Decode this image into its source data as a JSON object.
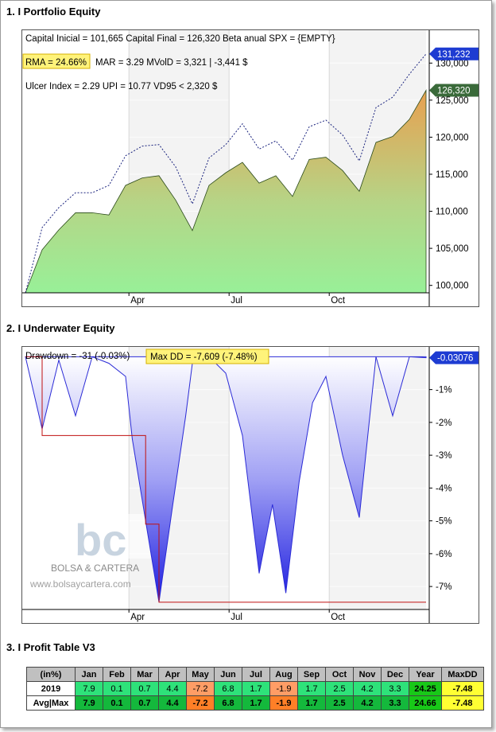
{
  "sections": {
    "s1": "1. I Portfolio Equity",
    "s2": "2. I Underwater Equity",
    "s3": "3. I Profit Table V3"
  },
  "equity": {
    "line1": "Capital Inicial = 101,665  Capital Final = 126,320  Beta anual SPX = {EMPTY}",
    "rma": "RMA = 24.66%",
    "line2": "MAR = 3.29  MVolD = 3,321 | -3,441 $",
    "line3": "Ulcer Index = 2.29   UPI = 10.77   VD95 < 2,320 $",
    "tag_benchmark": "131,232",
    "tag_equity": "126,320"
  },
  "underwater": {
    "drawdown": "Drawdown = -31 (-0.03%)",
    "maxdd": "Max DD = -7,609 (-7.48%)",
    "tag": "-0.03076"
  },
  "watermark": {
    "logo": "bc",
    "name": "BOLSA & CARTERA",
    "url": "www.bolsaycartera.com"
  },
  "colors": {
    "equity_top": "#e8a050",
    "equity_bottom": "#98f098",
    "benchmark": "#1a237e",
    "underwater": "#2b2bd6",
    "maxdd_line": "#c01010",
    "tag_blue": "#1e3cd2",
    "tag_green": "#3a6a3a",
    "highlight": "#fff37a"
  },
  "chart_data": [
    {
      "type": "area",
      "title": "",
      "x_ticks": [
        "Apr",
        "Jul",
        "Oct"
      ],
      "ylim": [
        99000,
        132500
      ],
      "y_ticks": [
        100000,
        105000,
        110000,
        115000,
        120000,
        125000,
        130000
      ],
      "y_tick_labels": [
        "100,000",
        "105,000",
        "110,000",
        "115,000",
        "120,000",
        "125,000",
        "130,000"
      ],
      "x_months": [
        0,
        0.5,
        1,
        1.5,
        2,
        2.5,
        3,
        3.5,
        4,
        4.5,
        5,
        5.5,
        6,
        6.5,
        7,
        7.5,
        8,
        8.5,
        9,
        9.5,
        10,
        10.5,
        11,
        11.5,
        12
      ],
      "series": [
        {
          "values": [
            99000,
            104800,
            107500,
            109800,
            109800,
            109500,
            113500,
            114500,
            114800,
            111500,
            107400,
            113500,
            115200,
            116600,
            113800,
            114800,
            112000,
            117000,
            117300,
            115500,
            112700,
            119300,
            120100,
            122400,
            126320
          ]
        },
        {
          "values": [
            99000,
            107800,
            110500,
            112500,
            112500,
            113500,
            117500,
            118800,
            119000,
            116000,
            111000,
            117200,
            119000,
            121800,
            118400,
            119500,
            116900,
            121400,
            122300,
            120300,
            116800,
            124000,
            125400,
            128500,
            131232
          ]
        }
      ]
    },
    {
      "type": "area",
      "title": "",
      "x_ticks": [
        "Apr",
        "Jul",
        "Oct"
      ],
      "ylim": [
        -7.7,
        0.3
      ],
      "y_ticks": [
        -1,
        -2,
        -3,
        -4,
        -5,
        -6,
        -7
      ],
      "y_tick_labels": [
        "-1%",
        "-2%",
        "-3%",
        "-4%",
        "-5%",
        "-6%",
        "-7%"
      ],
      "x_months": [
        0,
        0.5,
        1,
        1.5,
        2,
        2.5,
        3,
        3.2,
        3.6,
        4,
        4.4,
        4.8,
        5,
        5.5,
        6,
        6.5,
        7,
        7.4,
        7.8,
        8.2,
        8.6,
        9,
        9.5,
        10,
        10.5,
        11,
        11.5,
        12
      ],
      "series": [
        {
          "name": "Drawdown",
          "values": [
            0,
            -2.2,
            -0.1,
            -1.8,
            0,
            -0.2,
            -0.6,
            -2.5,
            -5.0,
            -7.48,
            -4.6,
            -1.8,
            -0.2,
            0,
            -0.5,
            -2.4,
            -6.6,
            -4.5,
            -7.2,
            -3.8,
            -1.4,
            -0.6,
            -3.0,
            -4.9,
            0,
            -1.8,
            0,
            -0.03
          ]
        },
        {
          "name": "Max DD",
          "values": [
            0,
            -2.4,
            -2.4,
            -2.4,
            -2.4,
            -2.4,
            -2.4,
            -2.4,
            -5.1,
            -7.48,
            -7.48,
            -7.48,
            -7.48,
            -7.48,
            -7.48,
            -7.48,
            -7.48,
            -7.48,
            -7.48,
            -7.48,
            -7.48,
            -7.48,
            -7.48,
            -7.48,
            -7.48,
            -7.48,
            -7.48,
            -7.48
          ]
        }
      ]
    },
    {
      "type": "table",
      "columns": [
        "(in%)",
        "Jan",
        "Feb",
        "Mar",
        "Apr",
        "May",
        "Jun",
        "Jul",
        "Aug",
        "Sep",
        "Oct",
        "Nov",
        "Dec",
        "Year",
        "MaxDD"
      ],
      "rows": [
        {
          "label": "2019",
          "cells": [
            "7.9",
            "0.1",
            "0.7",
            "4.4",
            "-7.2",
            "6.8",
            "1.7",
            "-1.9",
            "1.7",
            "2.5",
            "4.2",
            "3.3",
            "24.25",
            "-7.48"
          ]
        },
        {
          "label": "Avg|Max",
          "cells": [
            "7.9",
            "0.1",
            "0.7",
            "4.4",
            "-7.2",
            "6.8",
            "1.7",
            "-1.9",
            "1.7",
            "2.5",
            "4.2",
            "3.3",
            "24.66",
            "-7.48"
          ]
        }
      ],
      "cell_colors": {
        "2019_pos": "#2ee27a",
        "2019_neg": "#ff9d66",
        "avg_pos": "#14b83c",
        "avg_neg": "#ff7f27",
        "year": "#18c818",
        "maxdd": "#ffff33"
      }
    }
  ]
}
